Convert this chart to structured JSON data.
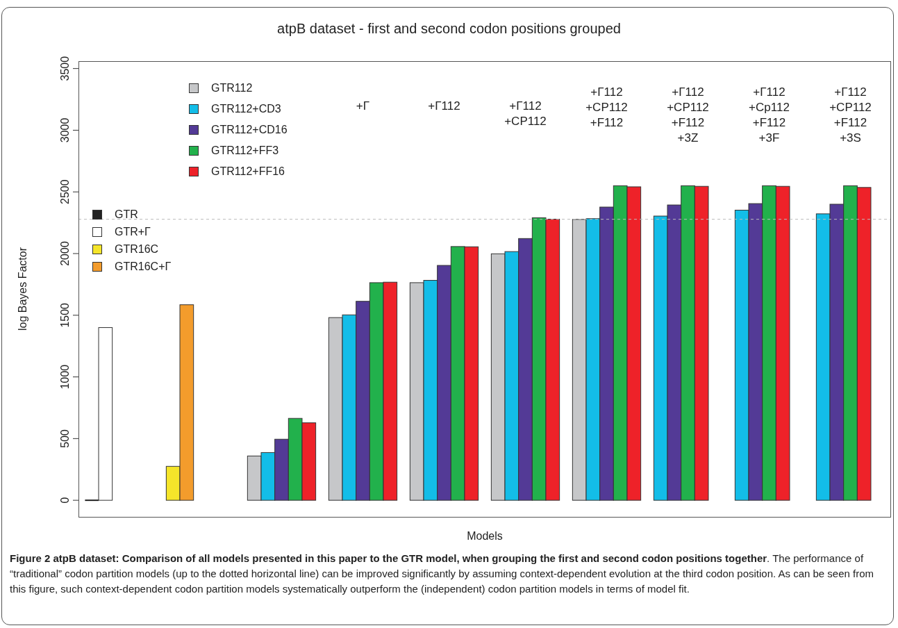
{
  "chart_data": {
    "type": "bar",
    "title": "atpB dataset - first and second codon positions grouped",
    "xlabel": "Models",
    "ylabel": "log Bayes Factor",
    "categories": [
      null,
      null,
      null,
      "+Γ",
      "+Γ112",
      "+Γ112\n+CP112",
      "+Γ112\n+CP112\n+F112",
      "+Γ112\n+CP112\n+F112\n+3Z",
      "+Γ112\n+Cp112\n+F112\n+3F",
      "+Γ112\n+CP112\n+F112\n+3S"
    ],
    "series": [
      {
        "name": "GTR112",
        "color": "#c6c7c9",
        "values": [
          null,
          null,
          359,
          1481,
          1764,
          1998,
          2277,
          null,
          null,
          null
        ]
      },
      {
        "name": "GTR112+CD3",
        "color": "#13bde8",
        "values": [
          null,
          null,
          387,
          1503,
          1783,
          2016,
          2283,
          2304,
          2352,
          2322
        ]
      },
      {
        "name": "GTR112+CD16",
        "color": "#533a96",
        "values": [
          null,
          null,
          495,
          1613,
          1904,
          2122,
          2377,
          2394,
          2405,
          2400
        ]
      },
      {
        "name": "GTR112+FF3",
        "color": "#22b14c",
        "values": [
          null,
          null,
          664,
          1764,
          2057,
          2290,
          2550,
          2550,
          2550,
          2550
        ]
      },
      {
        "name": "GTR112+FF16",
        "color": "#ee2229",
        "values": [
          null,
          null,
          628,
          1768,
          2055,
          2279,
          2541,
          2545,
          2545,
          2536
        ]
      },
      {
        "name": "GTR",
        "color": "#222222",
        "values": [
          0,
          null,
          null,
          null,
          null,
          null,
          null,
          null,
          null,
          null
        ]
      },
      {
        "name": "GTR+Γ",
        "color": "#ffffff",
        "values": [
          1400,
          null,
          null,
          null,
          null,
          null,
          null,
          null,
          null,
          null
        ]
      },
      {
        "name": "GTR16C",
        "color": "#f5e52a",
        "values": [
          null,
          275,
          null,
          null,
          null,
          null,
          null,
          null,
          null,
          null
        ]
      },
      {
        "name": "GTR16C+Γ",
        "color": "#f39c2c",
        "values": [
          null,
          1585,
          null,
          null,
          null,
          null,
          null,
          null,
          null,
          null
        ]
      }
    ],
    "ylim": [
      -140,
      3560
    ],
    "yticks": [
      0,
      500,
      1000,
      1500,
      2000,
      2500,
      3000,
      3500
    ],
    "ref_lines": [
      {
        "axis": "y",
        "value": 2278,
        "color": "#bbbbbb",
        "line_style": "dashed"
      }
    ],
    "legend": "top left",
    "annotations": [
      "Figure 2 atpB dataset: Comparison of all models presented in this paper to the GTR model, when grouping the first and second codon positions together",
      ". The performance of “traditional” codon partition models (up to the dotted horizontal line) can be improved significantly by assuming context-dependent evolution at the third codon position. As can be seen from this figure, such context-dependent codon partition models systematically outperform the (independent) codon partition models in terms of model fit."
    ]
  }
}
